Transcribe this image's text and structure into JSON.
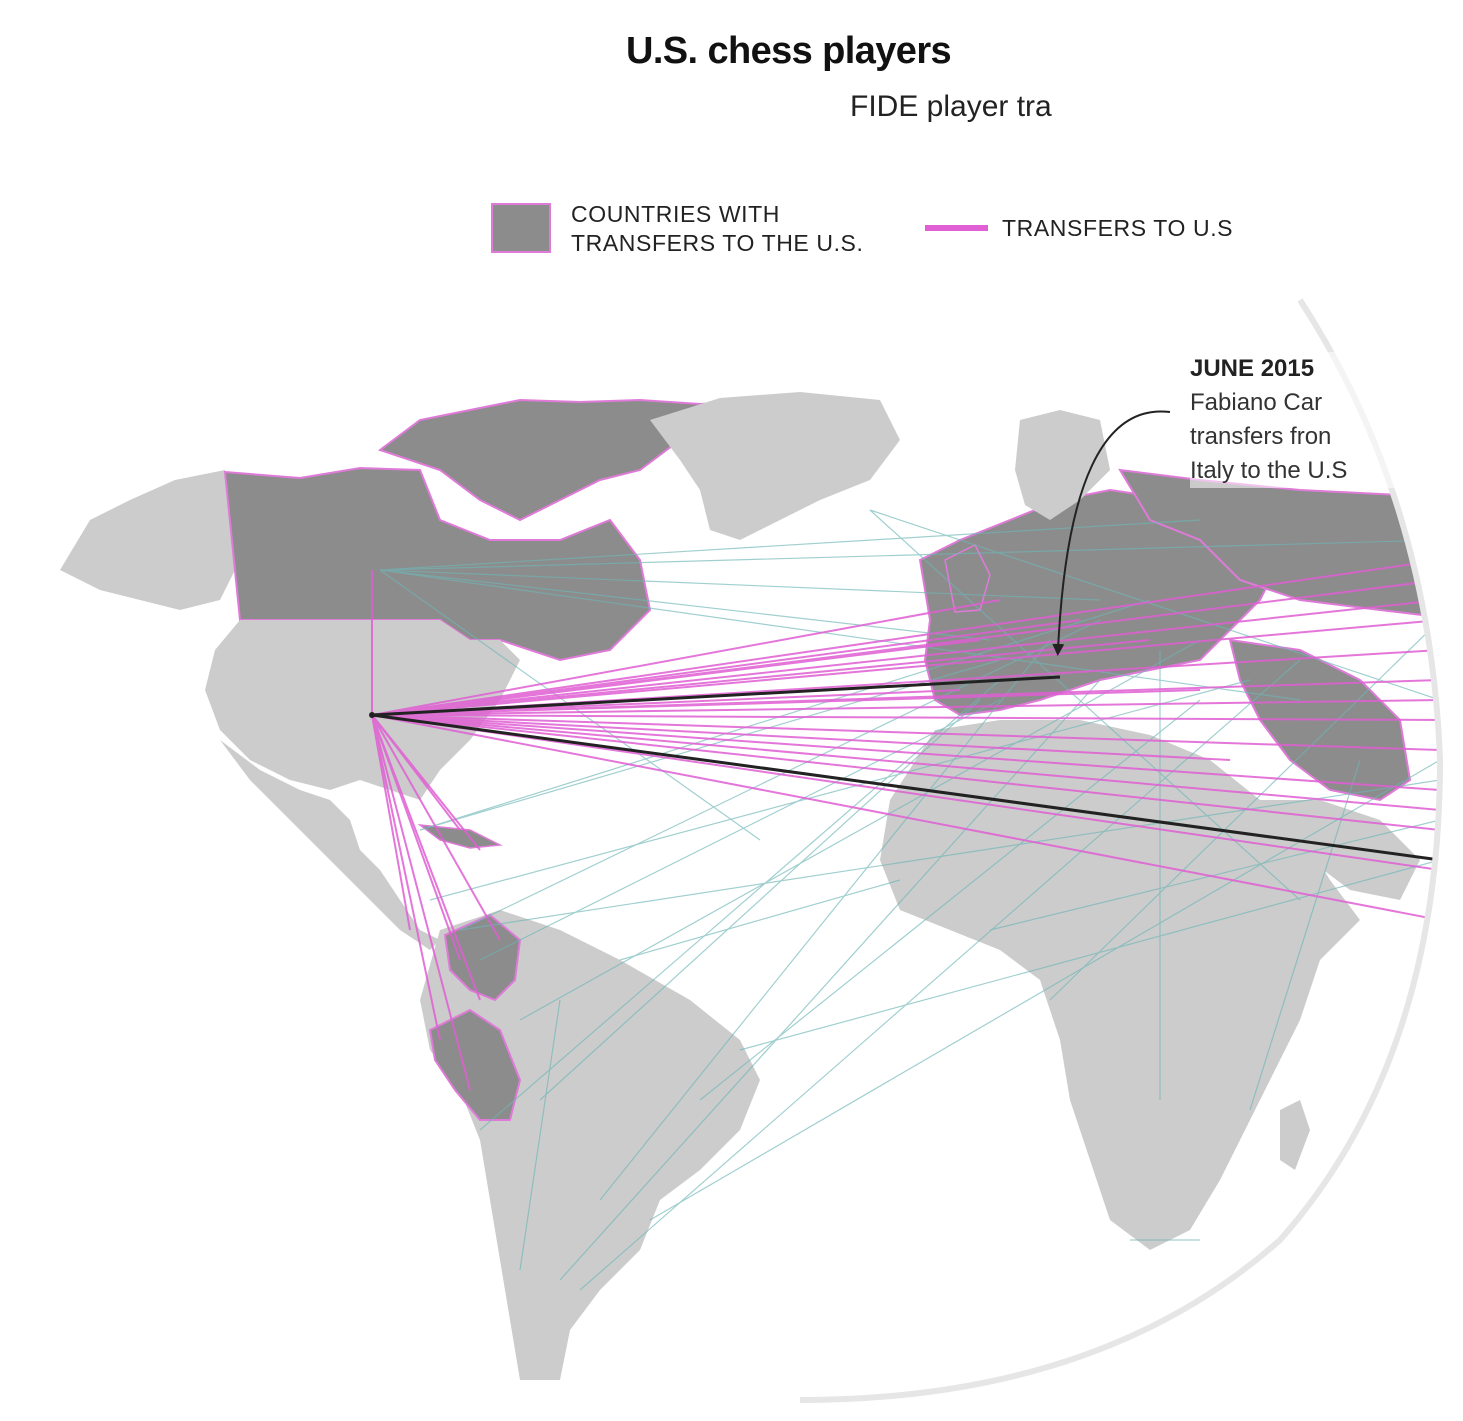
{
  "header": {
    "title": "U.S. chess players",
    "subtitle": "FIDE player tra"
  },
  "legend": {
    "countries_label_line1": "COUNTRIES WITH",
    "countries_label_line2": "TRANSFERS TO THE U.S.",
    "transfers_label": "TRANSFERS TO U.S"
  },
  "annotation": {
    "date": "JUNE 2015",
    "line1": "Fabiano Car",
    "line2": "transfers fron",
    "line3": "Italy to the U.S"
  },
  "colors": {
    "land": "#cccccc",
    "highlight_land": "#8c8c8c",
    "highlight_border": "#e07ad9",
    "transfer_line": "#e05fd4",
    "other_line": "#6fb6b6",
    "highlight_line": "#222222"
  }
}
